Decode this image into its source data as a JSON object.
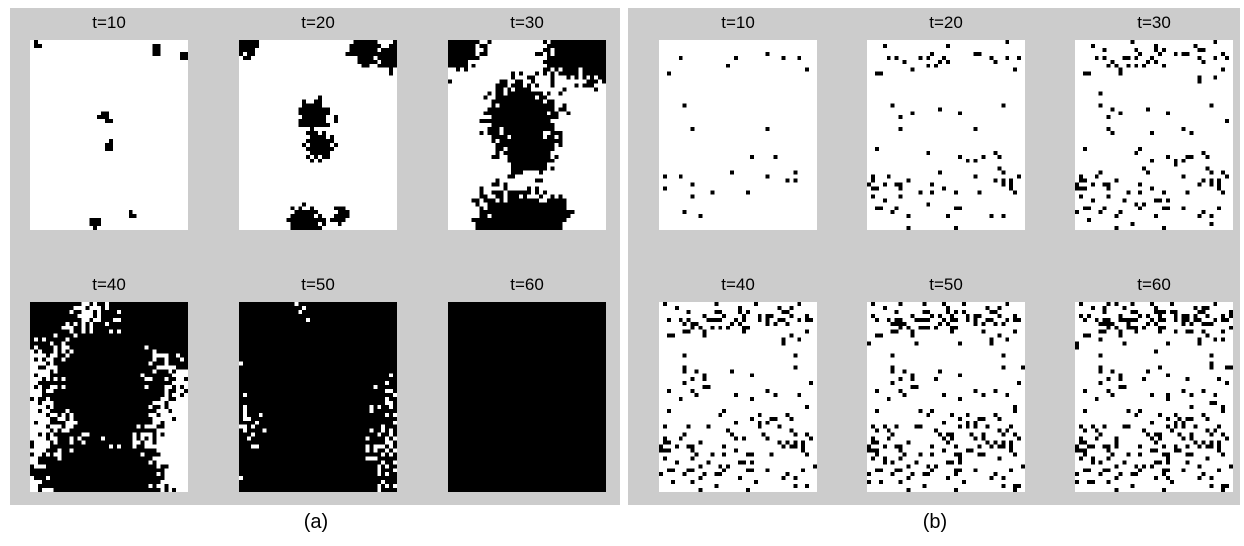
{
  "panels": [
    {
      "id": "a",
      "caption": "(a)",
      "frames": [
        {
          "label": "t=10",
          "black_fraction": 0.03
        },
        {
          "label": "t=20",
          "black_fraction": 0.12
        },
        {
          "label": "t=30",
          "black_fraction": 0.42
        },
        {
          "label": "t=40",
          "black_fraction": 0.72
        },
        {
          "label": "t=50",
          "black_fraction": 0.9
        },
        {
          "label": "t=60",
          "black_fraction": 1.0
        }
      ]
    },
    {
      "id": "b",
      "caption": "(b)",
      "frames": [
        {
          "label": "t=10",
          "black_fraction": 0.02
        },
        {
          "label": "t=20",
          "black_fraction": 0.05
        },
        {
          "label": "t=30",
          "black_fraction": 0.08
        },
        {
          "label": "t=40",
          "black_fraction": 0.12
        },
        {
          "label": "t=50",
          "black_fraction": 0.15
        },
        {
          "label": "t=60",
          "black_fraction": 0.17
        }
      ]
    }
  ],
  "colors": {
    "panel_background": "#cccccc",
    "cell_on": "#000000",
    "cell_off": "#ffffff"
  }
}
